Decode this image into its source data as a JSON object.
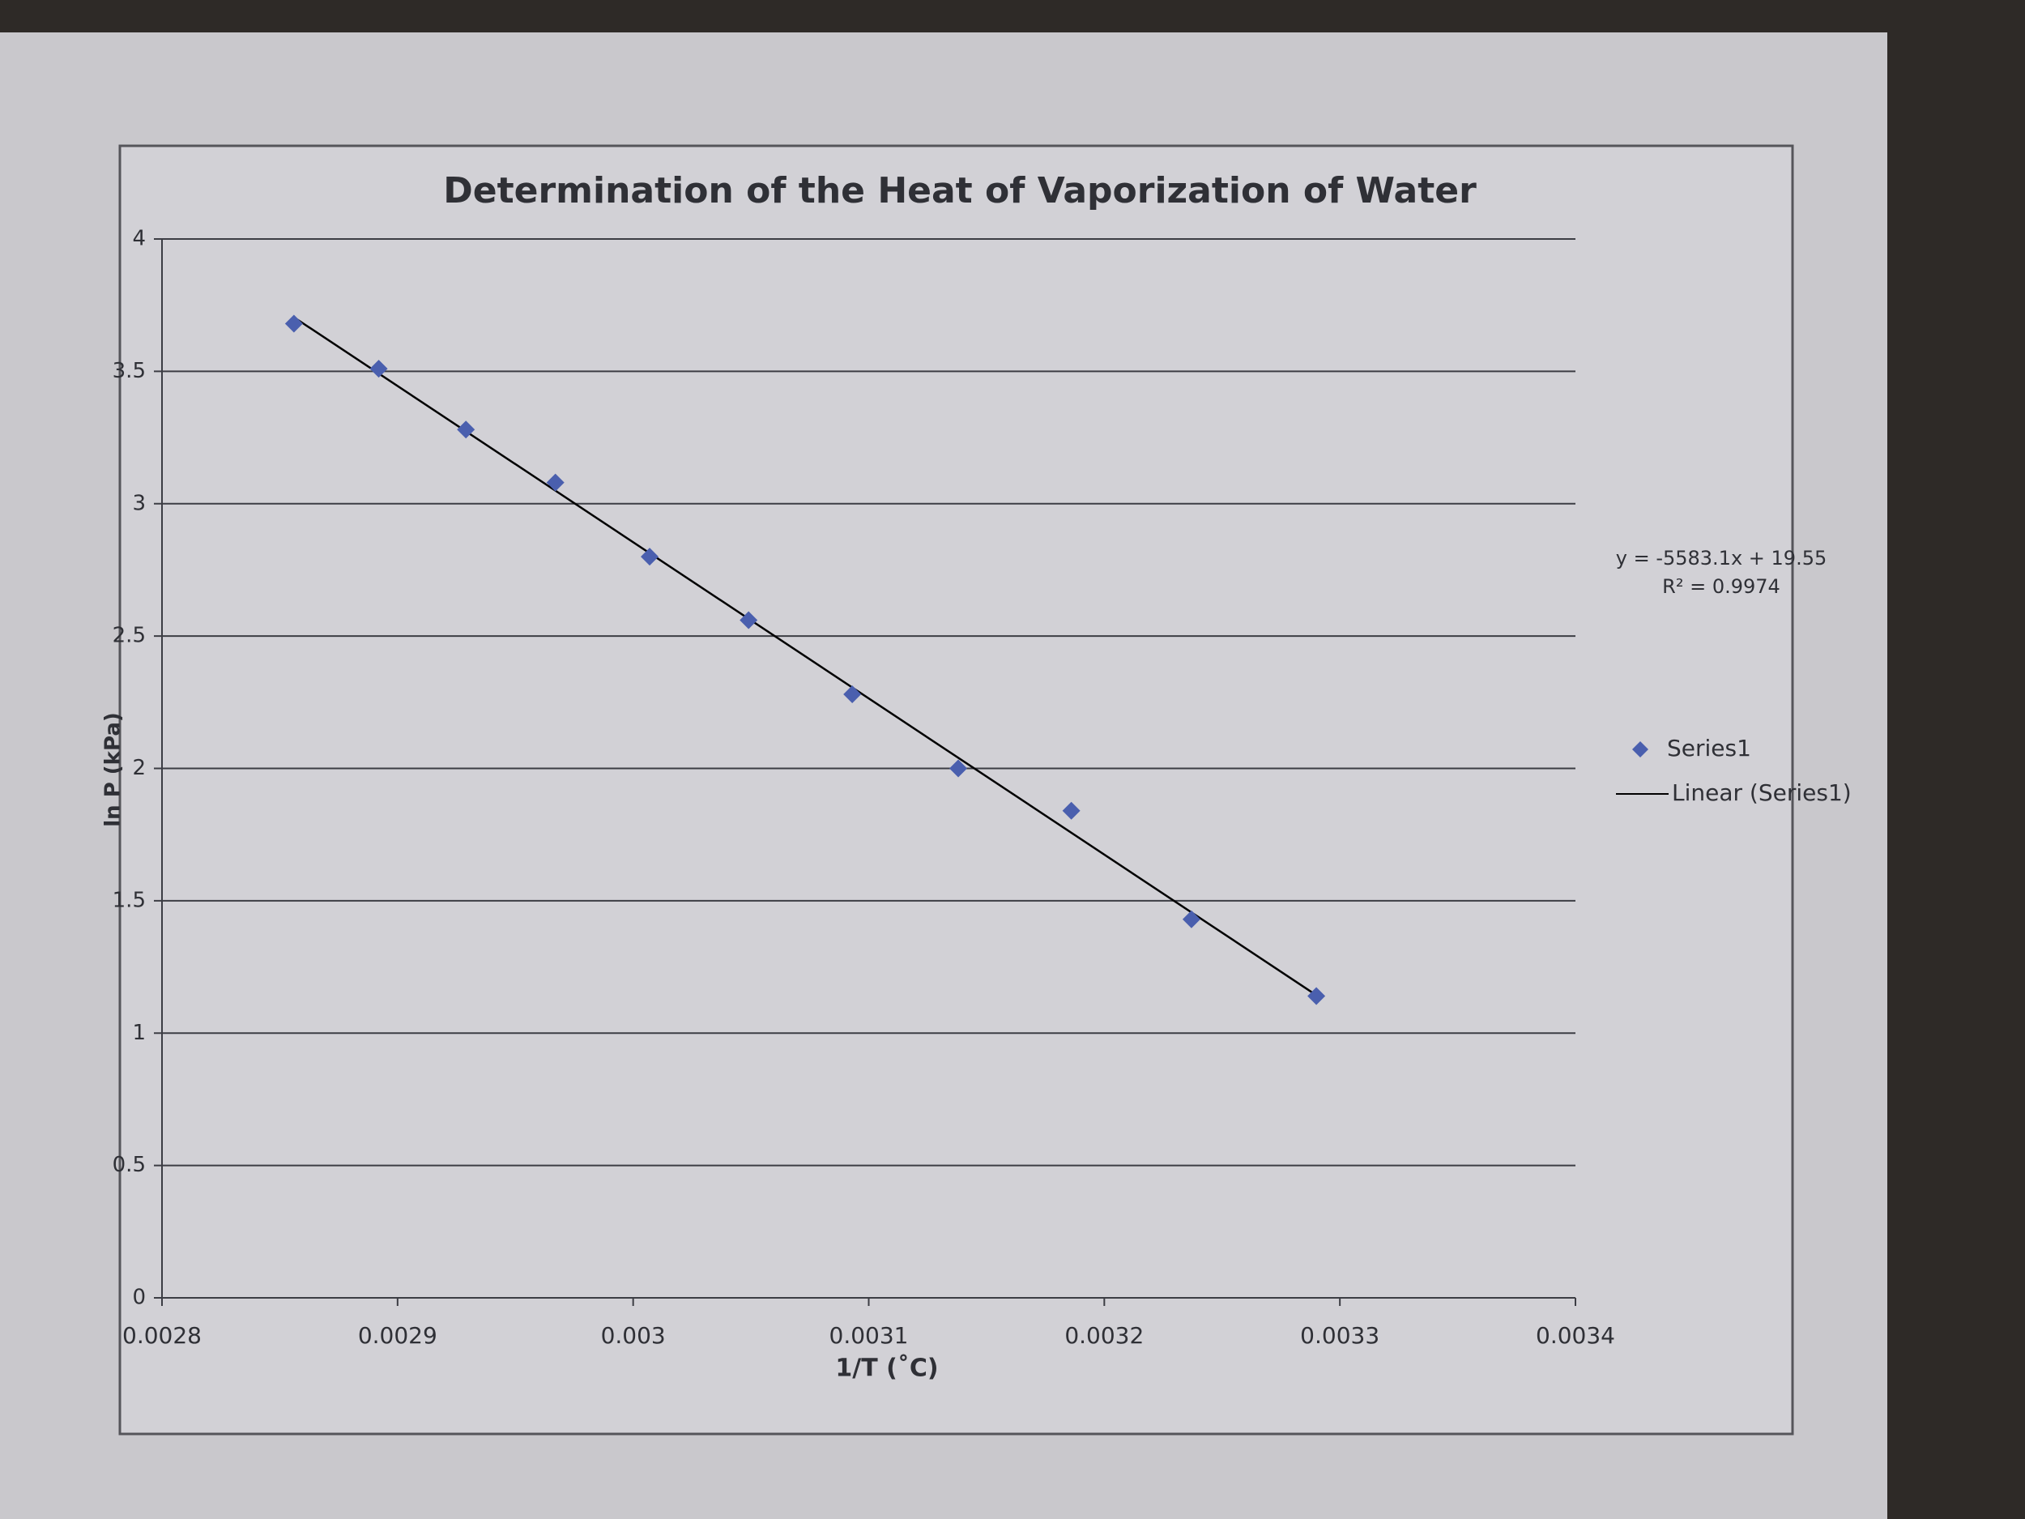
{
  "chart_data": {
    "type": "scatter",
    "title": "Determination of the Heat of Vaporization of Water",
    "x_label": "1/T (˚C)",
    "y_label": "ln P (kPa)",
    "series": [
      {
        "name": "Series1",
        "color": "#4a5fae",
        "x": [
          0.002856,
          0.002892,
          0.002929,
          0.002967,
          0.003007,
          0.003049,
          0.003093,
          0.003138,
          0.003186,
          0.003237,
          0.00329
        ],
        "values": [
          3.68,
          3.51,
          3.28,
          3.08,
          2.8,
          2.56,
          2.28,
          2.0,
          1.84,
          1.43,
          1.14
        ]
      }
    ],
    "trendline": {
      "type": "linear",
      "name": "Linear (Series1)",
      "color": "#000000",
      "annotations": [
        "y = -5583.1x + 19.55",
        "R² = 0.9974"
      ]
    },
    "xlim": [
      0.0028,
      0.0034
    ],
    "xticks": [
      0.0028,
      0.0029,
      0.003,
      0.0031,
      0.0032,
      0.0033,
      0.0034
    ],
    "ylim": [
      0,
      4
    ],
    "yticks": [
      0,
      0.5,
      1,
      1.5,
      2,
      2.5,
      3,
      3.5,
      4
    ],
    "grid": true,
    "legend": "right"
  }
}
